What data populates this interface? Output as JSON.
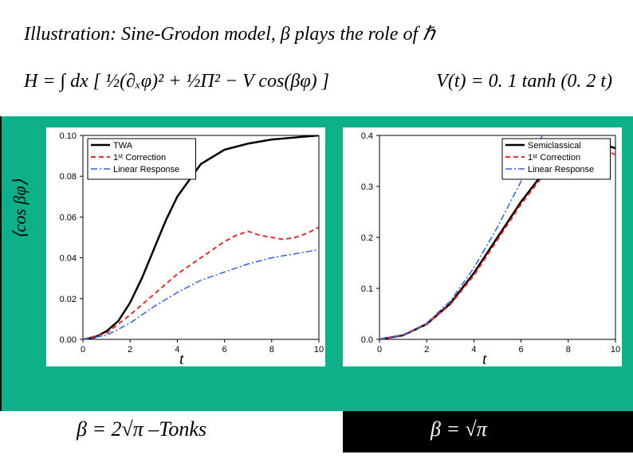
{
  "title_html": "Illustration: Sine-Grodon model, <i>β</i> plays the role of ℏ",
  "formula_h": "H = ∫ dx [ ½(∂ₓφ)² + ½Π² − V cos(βφ) ]",
  "formula_v": "V(t) = 0. 1 tanh (0. 2 t)",
  "beta_left": "β = 2√π  –Tonks",
  "beta_right": "β = √π",
  "ylabel": "⟨cos βφ⟩",
  "xlabel": "t",
  "legend": {
    "items": [
      {
        "label": "TWA",
        "color": "#000000",
        "dash": "solid",
        "width": 2.5
      },
      {
        "label": "1ˢᵗ Correction",
        "color": "#e03030",
        "dash": "dashed",
        "width": 2
      },
      {
        "label": "Linear Response",
        "color": "#3060e0",
        "dash": "dashdot",
        "width": 1.5
      }
    ],
    "items_right": [
      {
        "label": "Semiclassical",
        "color": "#000000",
        "dash": "solid",
        "width": 2.5
      },
      {
        "label": "1ˢᵗ Correction",
        "color": "#e03030",
        "dash": "dashed",
        "width": 2
      },
      {
        "label": "Linear Response",
        "color": "#3060e0",
        "dash": "dashdot",
        "width": 1.5
      }
    ]
  },
  "chart_left": {
    "type": "line",
    "xlim": [
      0,
      10
    ],
    "ylim": [
      0.0,
      0.1
    ],
    "xticks": [
      0,
      2,
      4,
      6,
      8,
      10
    ],
    "yticks": [
      0.0,
      0.02,
      0.04,
      0.06,
      0.08,
      0.1
    ],
    "ytick_labels": [
      "0.00",
      "0.02",
      "0.04",
      "0.06",
      "0.08",
      "0.10"
    ],
    "background_color": "#ffffff",
    "grid_color": "#e0e0e0",
    "series": [
      {
        "name": "TWA",
        "color": "#000000",
        "dash": "solid",
        "width": 2.5,
        "x": [
          0,
          0.5,
          1,
          1.5,
          2,
          2.5,
          3,
          3.5,
          4,
          5,
          6,
          7,
          8,
          9,
          10
        ],
        "y": [
          0,
          0.001,
          0.004,
          0.009,
          0.018,
          0.03,
          0.044,
          0.058,
          0.07,
          0.086,
          0.093,
          0.096,
          0.098,
          0.099,
          0.1
        ]
      },
      {
        "name": "1st Correction",
        "color": "#e03030",
        "dash": "dashed",
        "width": 2,
        "x": [
          0,
          1,
          2,
          3,
          4,
          5,
          6,
          6.5,
          7,
          7.5,
          8,
          8.5,
          9,
          9.5,
          10
        ],
        "y": [
          0,
          0.003,
          0.012,
          0.022,
          0.032,
          0.04,
          0.048,
          0.051,
          0.053,
          0.051,
          0.05,
          0.049,
          0.05,
          0.052,
          0.055
        ]
      },
      {
        "name": "Linear Response",
        "color": "#3060e0",
        "dash": "dashdot",
        "width": 1.5,
        "x": [
          0,
          1,
          2,
          3,
          4,
          5,
          6,
          7,
          8,
          9,
          10
        ],
        "y": [
          0,
          0.002,
          0.008,
          0.016,
          0.023,
          0.029,
          0.033,
          0.037,
          0.04,
          0.042,
          0.044
        ]
      }
    ]
  },
  "chart_right": {
    "type": "line",
    "xlim": [
      0,
      10
    ],
    "ylim": [
      0.0,
      0.4
    ],
    "xticks": [
      0,
      2,
      4,
      6,
      8,
      10
    ],
    "yticks": [
      0.0,
      0.1,
      0.2,
      0.3,
      0.4
    ],
    "ytick_labels": [
      "0.0",
      "0.1",
      "0.2",
      "0.3",
      "0.4"
    ],
    "background_color": "#ffffff",
    "grid_color": "#e0e0e0",
    "series": [
      {
        "name": "Semiclassical",
        "color": "#000000",
        "dash": "solid",
        "width": 2.5,
        "x": [
          0,
          1,
          2,
          3,
          4,
          5,
          6,
          7,
          8,
          8.5,
          9,
          9.5,
          10
        ],
        "y": [
          0,
          0.008,
          0.03,
          0.07,
          0.13,
          0.2,
          0.27,
          0.33,
          0.37,
          0.38,
          0.385,
          0.382,
          0.375
        ]
      },
      {
        "name": "1st Correction",
        "color": "#e03030",
        "dash": "dashed",
        "width": 2,
        "x": [
          0,
          1,
          2,
          3,
          4,
          5,
          6,
          7,
          8,
          8.5,
          9,
          9.5,
          10
        ],
        "y": [
          0,
          0.008,
          0.03,
          0.068,
          0.125,
          0.195,
          0.265,
          0.325,
          0.365,
          0.375,
          0.378,
          0.373,
          0.362
        ]
      },
      {
        "name": "Linear Response",
        "color": "#3060e0",
        "dash": "dashdot",
        "width": 1.5,
        "x": [
          0,
          1,
          2,
          3,
          4,
          5,
          6,
          6.5,
          7,
          7.5
        ],
        "y": [
          0,
          0.008,
          0.032,
          0.075,
          0.14,
          0.22,
          0.31,
          0.36,
          0.41,
          0.46
        ]
      }
    ]
  }
}
